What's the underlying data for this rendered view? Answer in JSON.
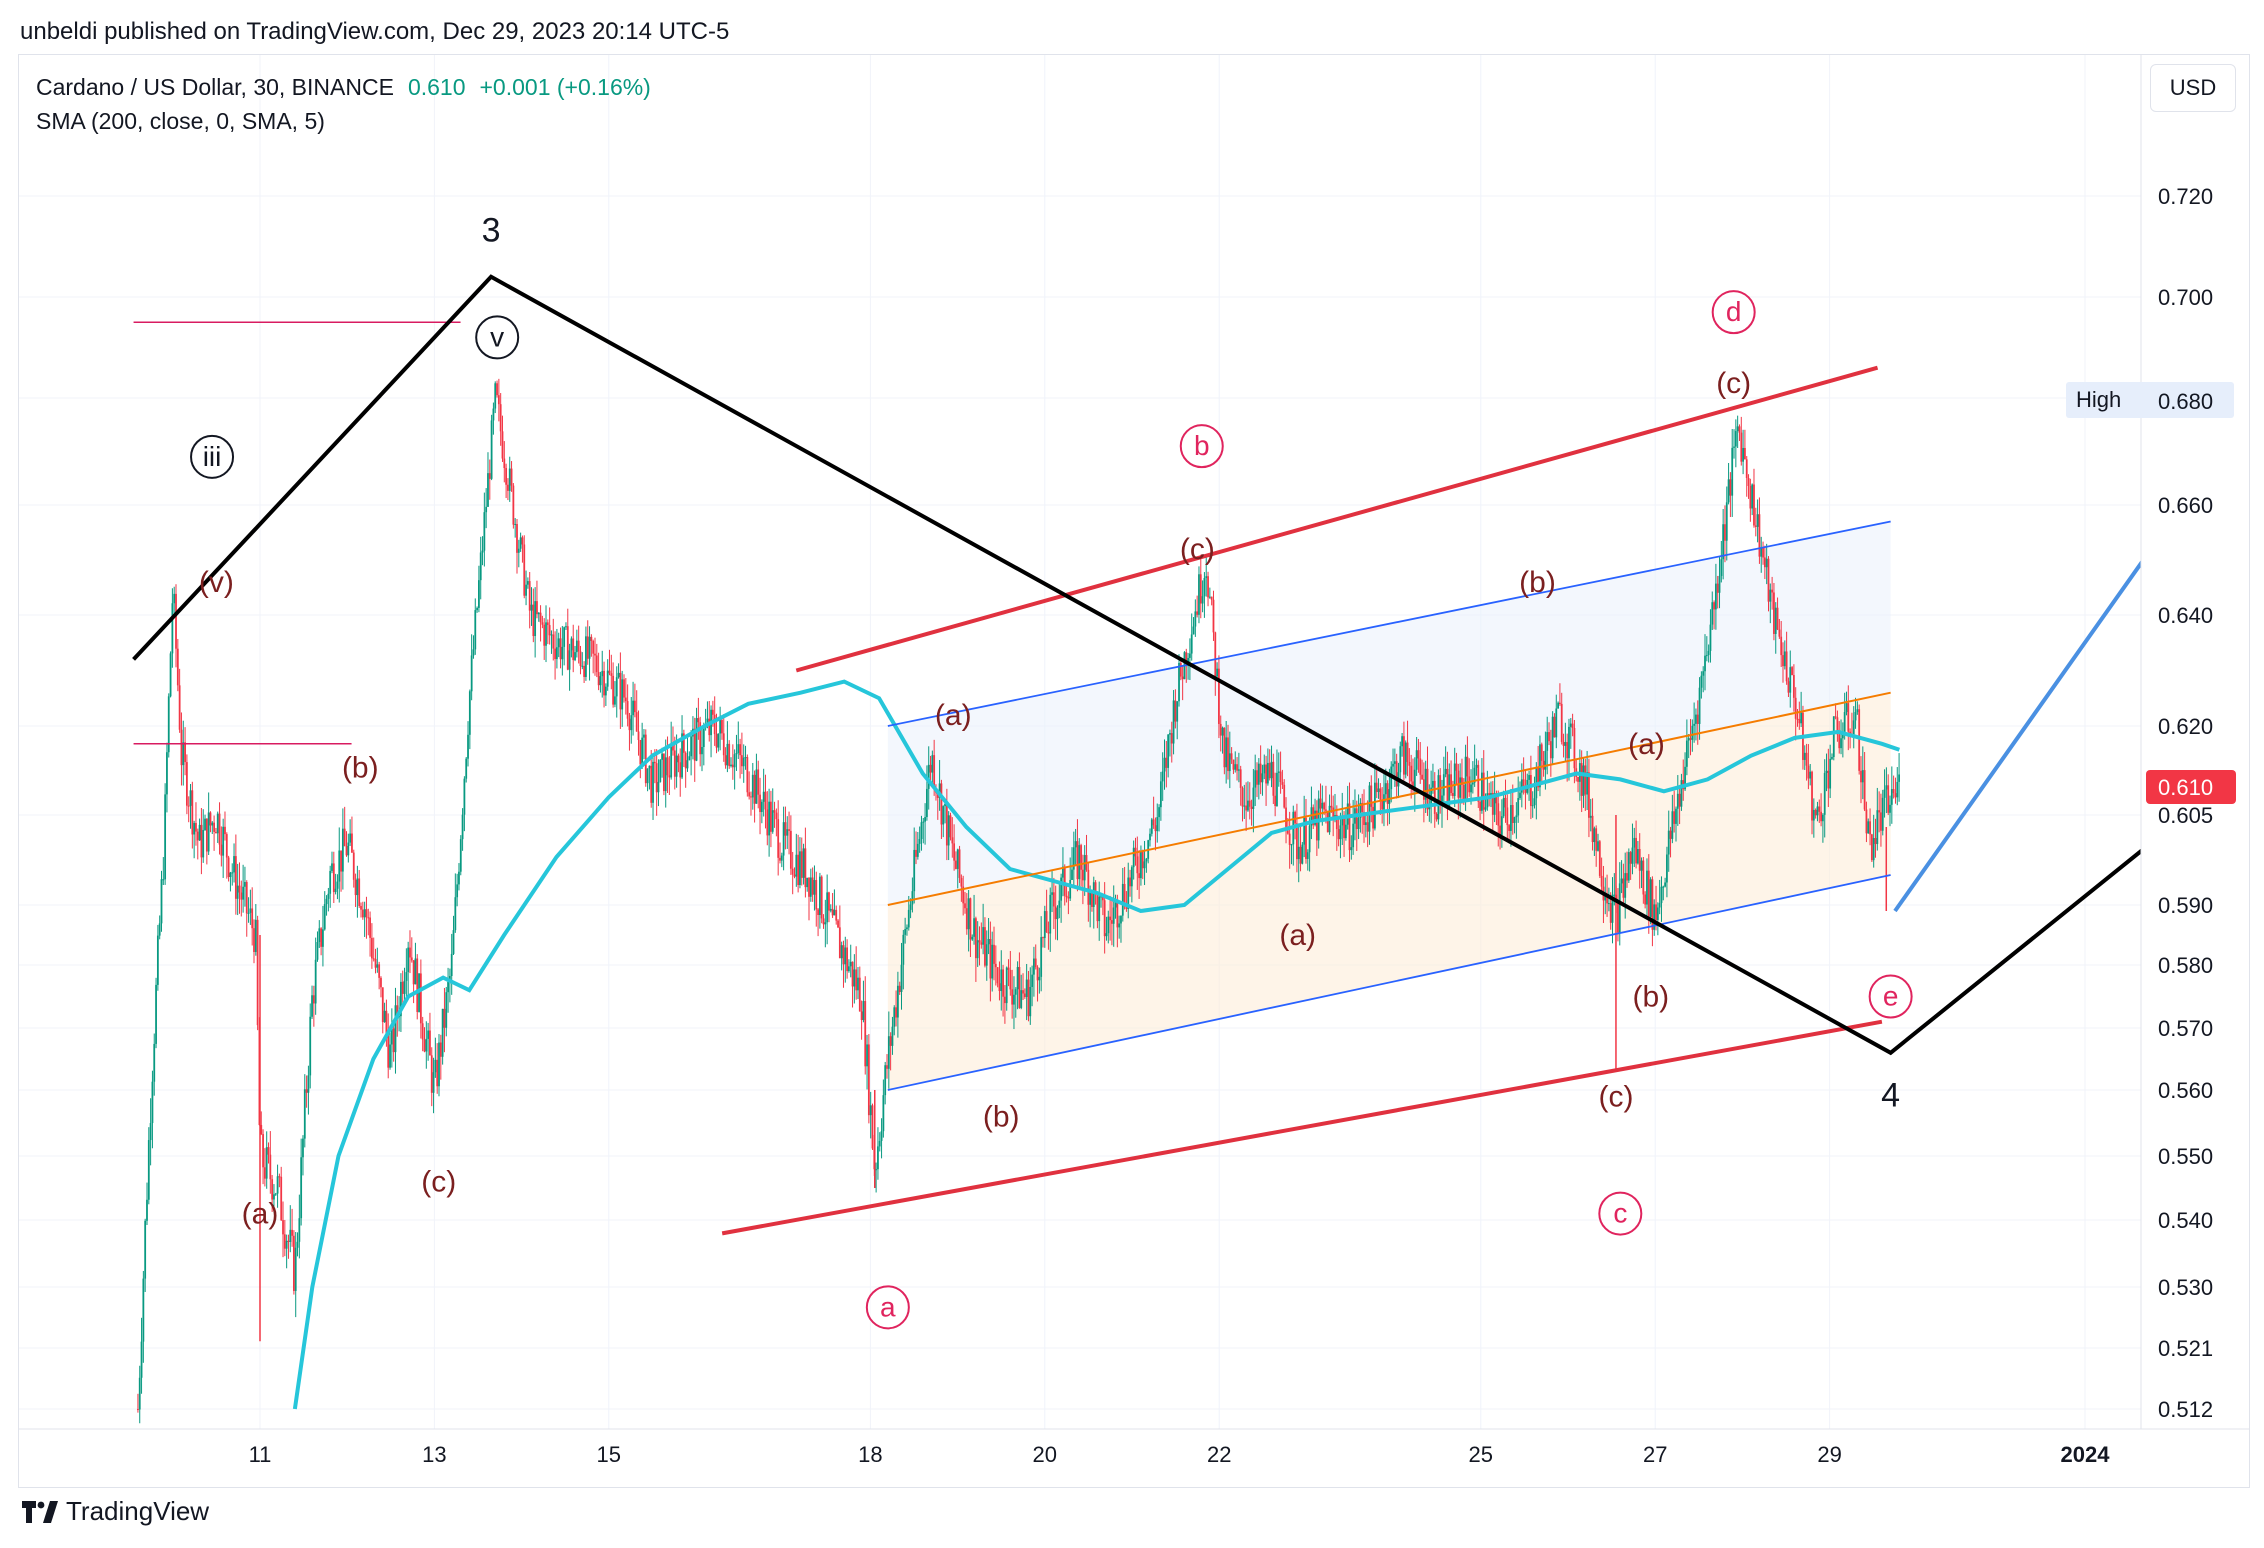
{
  "header": {
    "published": "unbeldi published on TradingView.com, Dec 29, 2023 20:14 UTC-5",
    "symbol": "Cardano / US Dollar, 30, BINANCE",
    "price": "0.610",
    "change": "+0.001 (+0.16%)",
    "indicator": "SMA (200, close, 0, SMA, 5)"
  },
  "toolbar": {
    "currency_button": "USD"
  },
  "brand": {
    "name": "TradingView"
  },
  "colors": {
    "candle_up": "#089981",
    "candle_down": "#f23645",
    "sma": "#26c6da",
    "trend_black": "#000000",
    "channel_red": "#e0313f",
    "channel_blue": "#2962ff",
    "projection_blue": "#4a90e2",
    "fib_orange": "#f57c00",
    "price_tag": "#f23645",
    "high_tag_bg": "#e6eefb",
    "circle_label": "#e0245e",
    "wave_label": "#7b1f1f"
  },
  "chart_data": {
    "type": "candlestick",
    "title": "Cardano / US Dollar, 30, BINANCE",
    "x_ticks": [
      "11",
      "13",
      "15",
      "18",
      "20",
      "22",
      "25",
      "27",
      "29",
      "2024"
    ],
    "y_ticks": [
      "0.720",
      "0.700",
      "0.680",
      "0.660",
      "0.640",
      "0.620",
      "0.605",
      "0.590",
      "0.580",
      "0.570",
      "0.560",
      "0.550",
      "0.540",
      "0.530",
      "0.521",
      "0.512"
    ],
    "ylim": [
      0.51,
      0.725
    ],
    "last_price": 0.61,
    "high_label": "High",
    "high_value": "0.680",
    "price_path": [
      [
        9.6,
        0.512
      ],
      [
        9.75,
        0.56
      ],
      [
        9.9,
        0.6
      ],
      [
        10.0,
        0.645
      ],
      [
        10.1,
        0.615
      ],
      [
        10.3,
        0.6
      ],
      [
        10.5,
        0.605
      ],
      [
        10.7,
        0.595
      ],
      [
        10.95,
        0.585
      ],
      [
        11.0,
        0.55
      ],
      [
        11.2,
        0.545
      ],
      [
        11.4,
        0.532
      ],
      [
        11.6,
        0.575
      ],
      [
        11.8,
        0.595
      ],
      [
        12.0,
        0.6
      ],
      [
        12.2,
        0.59
      ],
      [
        12.5,
        0.565
      ],
      [
        12.7,
        0.585
      ],
      [
        13.0,
        0.56
      ],
      [
        13.2,
        0.58
      ],
      [
        13.4,
        0.625
      ],
      [
        13.7,
        0.68
      ],
      [
        13.9,
        0.66
      ],
      [
        14.1,
        0.64
      ],
      [
        14.4,
        0.635
      ],
      [
        14.8,
        0.632
      ],
      [
        15.2,
        0.625
      ],
      [
        15.5,
        0.61
      ],
      [
        15.8,
        0.615
      ],
      [
        16.2,
        0.62
      ],
      [
        16.6,
        0.612
      ],
      [
        17.0,
        0.6
      ],
      [
        17.3,
        0.595
      ],
      [
        17.6,
        0.585
      ],
      [
        17.9,
        0.575
      ],
      [
        18.05,
        0.548
      ],
      [
        18.2,
        0.565
      ],
      [
        18.45,
        0.59
      ],
      [
        18.7,
        0.615
      ],
      [
        18.95,
        0.598
      ],
      [
        19.2,
        0.585
      ],
      [
        19.5,
        0.578
      ],
      [
        19.8,
        0.575
      ],
      [
        20.1,
        0.59
      ],
      [
        20.4,
        0.598
      ],
      [
        20.7,
        0.586
      ],
      [
        21.0,
        0.595
      ],
      [
        21.3,
        0.605
      ],
      [
        21.5,
        0.625
      ],
      [
        21.85,
        0.65
      ],
      [
        22.05,
        0.615
      ],
      [
        22.3,
        0.608
      ],
      [
        22.6,
        0.612
      ],
      [
        22.9,
        0.6
      ],
      [
        23.2,
        0.605
      ],
      [
        23.5,
        0.603
      ],
      [
        23.8,
        0.607
      ],
      [
        24.1,
        0.615
      ],
      [
        24.5,
        0.608
      ],
      [
        24.9,
        0.612
      ],
      [
        25.2,
        0.604
      ],
      [
        25.6,
        0.61
      ],
      [
        25.9,
        0.622
      ],
      [
        26.2,
        0.61
      ],
      [
        26.4,
        0.595
      ],
      [
        26.55,
        0.588
      ],
      [
        26.75,
        0.6
      ],
      [
        27.0,
        0.588
      ],
      [
        27.2,
        0.603
      ],
      [
        27.5,
        0.625
      ],
      [
        27.7,
        0.645
      ],
      [
        27.95,
        0.675
      ],
      [
        28.15,
        0.658
      ],
      [
        28.35,
        0.64
      ],
      [
        28.6,
        0.625
      ],
      [
        28.85,
        0.603
      ],
      [
        29.05,
        0.618
      ],
      [
        29.3,
        0.622
      ],
      [
        29.45,
        0.6
      ],
      [
        29.6,
        0.605
      ],
      [
        29.8,
        0.61
      ]
    ],
    "sma_path": [
      [
        11.4,
        0.512
      ],
      [
        11.6,
        0.53
      ],
      [
        11.9,
        0.55
      ],
      [
        12.3,
        0.565
      ],
      [
        12.7,
        0.575
      ],
      [
        13.1,
        0.578
      ],
      [
        13.4,
        0.576
      ],
      [
        13.8,
        0.585
      ],
      [
        14.4,
        0.598
      ],
      [
        15.0,
        0.608
      ],
      [
        15.5,
        0.615
      ],
      [
        16.1,
        0.62
      ],
      [
        16.6,
        0.624
      ],
      [
        17.2,
        0.626
      ],
      [
        17.7,
        0.628
      ],
      [
        18.1,
        0.625
      ],
      [
        18.6,
        0.612
      ],
      [
        19.1,
        0.603
      ],
      [
        19.6,
        0.596
      ],
      [
        20.1,
        0.594
      ],
      [
        20.6,
        0.592
      ],
      [
        21.1,
        0.589
      ],
      [
        21.6,
        0.59
      ],
      [
        22.1,
        0.596
      ],
      [
        22.6,
        0.602
      ],
      [
        23.1,
        0.604
      ],
      [
        23.6,
        0.605
      ],
      [
        24.1,
        0.606
      ],
      [
        24.6,
        0.607
      ],
      [
        25.1,
        0.608
      ],
      [
        25.6,
        0.61
      ],
      [
        26.1,
        0.612
      ],
      [
        26.6,
        0.611
      ],
      [
        27.1,
        0.609
      ],
      [
        27.6,
        0.611
      ],
      [
        28.1,
        0.615
      ],
      [
        28.6,
        0.618
      ],
      [
        29.1,
        0.619
      ],
      [
        29.6,
        0.617
      ],
      [
        29.8,
        0.616
      ]
    ],
    "trend_line_black": [
      [
        9.55,
        0.632
      ],
      [
        13.65,
        0.704
      ],
      [
        29.7,
        0.566
      ],
      [
        33.0,
        0.604
      ]
    ],
    "projection_blue": [
      [
        29.75,
        0.589
      ],
      [
        33.0,
        0.659
      ]
    ],
    "channel_red_upper": [
      [
        17.15,
        0.63
      ],
      [
        29.55,
        0.686
      ]
    ],
    "channel_red_lower": [
      [
        16.3,
        0.538
      ],
      [
        29.6,
        0.571
      ]
    ],
    "channel_blue_upper": [
      [
        18.2,
        0.62
      ],
      [
        29.7,
        0.657
      ]
    ],
    "channel_blue_lower": [
      [
        18.2,
        0.56
      ],
      [
        29.7,
        0.595
      ]
    ],
    "fib_orange_line": [
      [
        18.2,
        0.59
      ],
      [
        29.7,
        0.626
      ]
    ],
    "horizontal_lines": [
      {
        "x": [
          9.55,
          13.3
        ],
        "y": 0.695
      },
      {
        "x": [
          9.55,
          12.05
        ],
        "y": 0.617
      }
    ],
    "wave_labels": [
      {
        "text": "3",
        "x": 13.65,
        "y": 0.713,
        "style": "big"
      },
      {
        "text": "4",
        "x": 29.7,
        "y": 0.559,
        "style": "big"
      },
      {
        "text": "v",
        "x": 13.72,
        "y": 0.692,
        "style": "circled-black"
      },
      {
        "text": "iii",
        "x": 10.45,
        "y": 0.669,
        "style": "circled-black"
      },
      {
        "text": "(v)",
        "x": 10.5,
        "y": 0.646,
        "style": "wave"
      },
      {
        "text": "(b)",
        "x": 12.15,
        "y": 0.613,
        "style": "wave"
      },
      {
        "text": "(a)",
        "x": 11.0,
        "y": 0.541,
        "style": "wave"
      },
      {
        "text": "(c)",
        "x": 13.05,
        "y": 0.546,
        "style": "wave"
      },
      {
        "text": "(a)",
        "x": 18.95,
        "y": 0.622,
        "style": "wave"
      },
      {
        "text": "(b)",
        "x": 19.5,
        "y": 0.556,
        "style": "wave"
      },
      {
        "text": "(c)",
        "x": 21.75,
        "y": 0.652,
        "style": "wave"
      },
      {
        "text": "(a)",
        "x": 22.9,
        "y": 0.585,
        "style": "wave"
      },
      {
        "text": "(b)",
        "x": 25.65,
        "y": 0.646,
        "style": "wave"
      },
      {
        "text": "(a)",
        "x": 26.9,
        "y": 0.617,
        "style": "wave"
      },
      {
        "text": "(b)",
        "x": 26.95,
        "y": 0.575,
        "style": "wave"
      },
      {
        "text": "(c)",
        "x": 26.55,
        "y": 0.559,
        "style": "wave"
      },
      {
        "text": "(c)",
        "x": 27.9,
        "y": 0.683,
        "style": "wave"
      },
      {
        "text": "a",
        "x": 18.2,
        "y": 0.527,
        "style": "circled-red"
      },
      {
        "text": "b",
        "x": 21.8,
        "y": 0.671,
        "style": "circled-red"
      },
      {
        "text": "c",
        "x": 26.6,
        "y": 0.541,
        "style": "circled-red"
      },
      {
        "text": "d",
        "x": 27.9,
        "y": 0.697,
        "style": "circled-red"
      },
      {
        "text": "e",
        "x": 29.7,
        "y": 0.575,
        "style": "circled-red"
      }
    ]
  }
}
